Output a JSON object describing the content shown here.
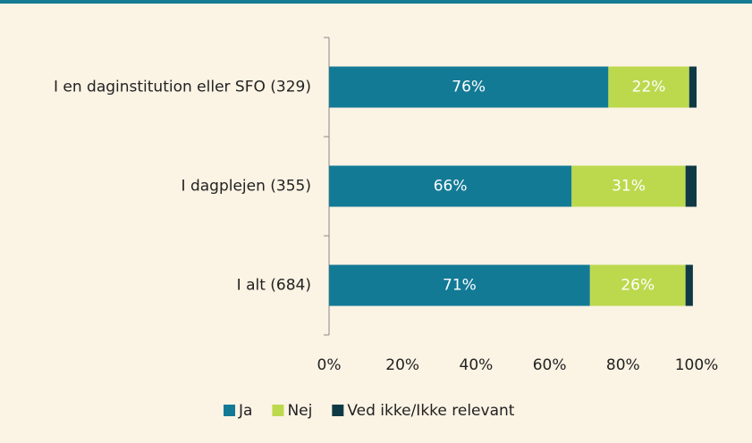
{
  "chart_data": {
    "type": "stacked_bar_horizontal",
    "categories": [
      "I en daginstitution eller SFO (329)",
      "I dagplejen (355)",
      "I alt (684)"
    ],
    "series": [
      {
        "name": "Ja",
        "color": "#137a96",
        "values": [
          76,
          66,
          71
        ],
        "value_labels": [
          "76%",
          "66%",
          "71%"
        ]
      },
      {
        "name": "Nej",
        "color": "#bcd94e",
        "values": [
          22,
          31,
          26
        ],
        "value_labels": [
          "22%",
          "31%",
          "26%"
        ]
      },
      {
        "name": "Ved ikke/Ikke relevant",
        "color": "#0f3a45",
        "values": [
          2,
          3,
          2
        ]
      }
    ],
    "xlim": [
      0,
      100
    ],
    "xticks": [
      {
        "value": 0,
        "label": "0%"
      },
      {
        "value": 20,
        "label": "20%"
      },
      {
        "value": 40,
        "label": "40%"
      },
      {
        "value": 60,
        "label": "60%"
      },
      {
        "value": 80,
        "label": "80%"
      },
      {
        "value": 100,
        "label": "100%"
      }
    ],
    "legend": "bottom"
  }
}
